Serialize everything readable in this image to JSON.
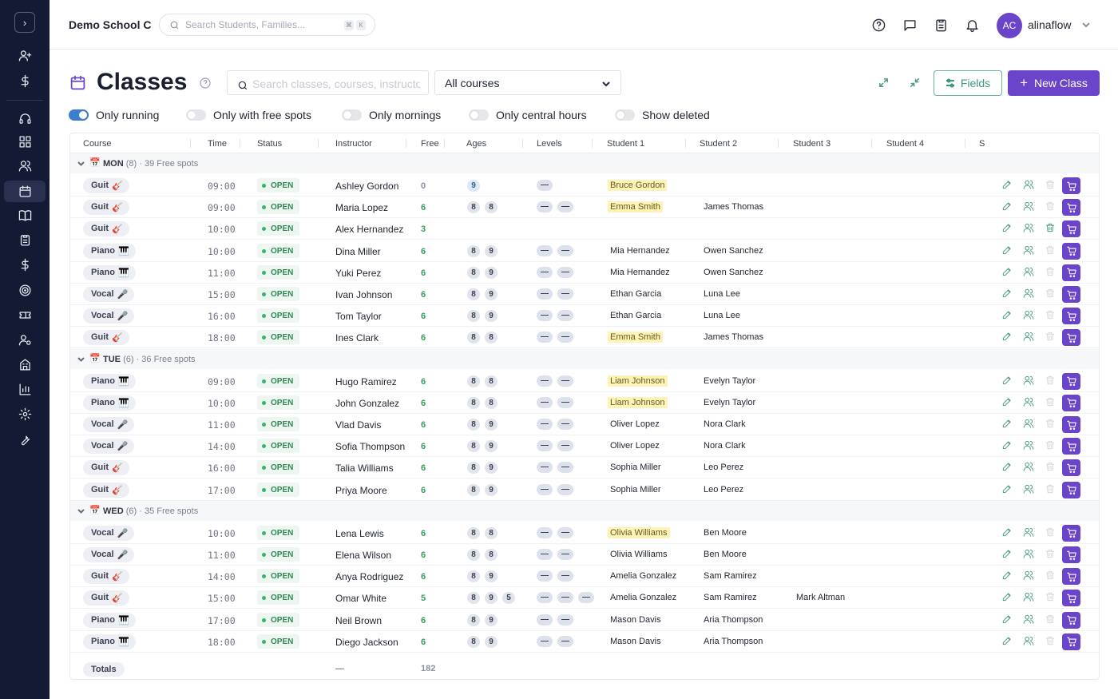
{
  "app": {
    "school_name": "Demo School C",
    "search_placeholder": "Search Students, Families...",
    "kbd_1": "⌘",
    "kbd_2": "K",
    "user": {
      "initials": "AC",
      "name": "alinaflow"
    }
  },
  "sidebar": {
    "toggle": "›",
    "items": [
      {
        "icon": "user-plus-icon"
      },
      {
        "icon": "dollar-icon"
      },
      {
        "icon": "headset-icon"
      },
      {
        "icon": "grid-icon"
      },
      {
        "icon": "users-icon"
      },
      {
        "icon": "calendar-icon",
        "active": true
      },
      {
        "icon": "book-icon"
      },
      {
        "icon": "clipboard-icon"
      },
      {
        "icon": "dollar-icon"
      },
      {
        "icon": "target-icon"
      },
      {
        "icon": "ticket-icon"
      },
      {
        "icon": "user-gear-icon"
      },
      {
        "icon": "building-icon"
      },
      {
        "icon": "chart-icon"
      },
      {
        "icon": "gear-icon"
      },
      {
        "icon": "wrench-icon"
      }
    ]
  },
  "page": {
    "title": "Classes",
    "search_placeholder": "Search classes, courses, instructors...",
    "courses_select": "All courses",
    "fields_label": "Fields",
    "new_class_label": "New Class"
  },
  "filters": [
    {
      "label": "Only running",
      "on": true
    },
    {
      "label": "Only with free spots",
      "on": false
    },
    {
      "label": "Only mornings",
      "on": false
    },
    {
      "label": "Only central hours",
      "on": false
    },
    {
      "label": "Show deleted",
      "on": false
    }
  ],
  "columns": [
    "Course",
    "Time",
    "Status",
    "Instructor",
    "Free",
    "Ages",
    "Levels",
    "Student 1",
    "Student 2",
    "Student 3",
    "Student 4",
    "S"
  ],
  "groups": [
    {
      "day": "MON",
      "meta": "(8) · 39 Free spots",
      "rows": [
        {
          "course": "Guit",
          "emoji": "🎸",
          "time": "09:00",
          "status": "OPEN",
          "instructor": "Ashley Gordon",
          "free": "0",
          "ages": [
            "9"
          ],
          "levels": 1,
          "s1": "Bruce Gordon",
          "s1hl": true,
          "s2": "",
          "s3": ""
        },
        {
          "course": "Guit",
          "emoji": "🎸",
          "time": "09:00",
          "status": "OPEN",
          "instructor": "Maria Lopez",
          "free": "6",
          "ages": [
            "8",
            "8"
          ],
          "levels": 2,
          "s1": "Emma Smith",
          "s1hl": true,
          "s2": "James Thomas",
          "s3": ""
        },
        {
          "course": "Guit",
          "emoji": "🎸",
          "time": "10:00",
          "status": "OPEN",
          "instructor": "Alex Hernandez",
          "free": "3",
          "ages": [],
          "levels": 0,
          "s1": "",
          "s1hl": false,
          "s2": "",
          "s3": "",
          "trash_live": true
        },
        {
          "course": "Piano",
          "emoji": "🎹",
          "time": "10:00",
          "status": "OPEN",
          "instructor": "Dina Miller",
          "free": "6",
          "ages": [
            "8",
            "9"
          ],
          "levels": 2,
          "s1": "Mia Hernandez",
          "s1hl": false,
          "s2": "Owen Sanchez",
          "s3": ""
        },
        {
          "course": "Piano",
          "emoji": "🎹",
          "time": "11:00",
          "status": "OPEN",
          "instructor": "Yuki Perez",
          "free": "6",
          "ages": [
            "8",
            "9"
          ],
          "levels": 2,
          "s1": "Mia Hernandez",
          "s1hl": false,
          "s2": "Owen Sanchez",
          "s3": ""
        },
        {
          "course": "Vocal",
          "emoji": "🎤",
          "time": "15:00",
          "status": "OPEN",
          "instructor": "Ivan Johnson",
          "free": "6",
          "ages": [
            "8",
            "9"
          ],
          "levels": 2,
          "s1": "Ethan Garcia",
          "s1hl": false,
          "s2": "Luna Lee",
          "s3": ""
        },
        {
          "course": "Vocal",
          "emoji": "🎤",
          "time": "16:00",
          "status": "OPEN",
          "instructor": "Tom Taylor",
          "free": "6",
          "ages": [
            "8",
            "9"
          ],
          "levels": 2,
          "s1": "Ethan Garcia",
          "s1hl": false,
          "s2": "Luna Lee",
          "s3": ""
        },
        {
          "course": "Guit",
          "emoji": "🎸",
          "time": "18:00",
          "status": "OPEN",
          "instructor": "Ines Clark",
          "free": "6",
          "ages": [
            "8",
            "8"
          ],
          "levels": 2,
          "s1": "Emma Smith",
          "s1hl": true,
          "s2": "James Thomas",
          "s3": ""
        }
      ]
    },
    {
      "day": "TUE",
      "meta": "(6) · 36 Free spots",
      "rows": [
        {
          "course": "Piano",
          "emoji": "🎹",
          "time": "09:00",
          "status": "OPEN",
          "instructor": "Hugo Ramirez",
          "free": "6",
          "ages": [
            "8",
            "8"
          ],
          "levels": 2,
          "s1": "Liam Johnson",
          "s1hl": true,
          "s2": "Evelyn Taylor",
          "s3": ""
        },
        {
          "course": "Piano",
          "emoji": "🎹",
          "time": "10:00",
          "status": "OPEN",
          "instructor": "John Gonzalez",
          "free": "6",
          "ages": [
            "8",
            "8"
          ],
          "levels": 2,
          "s1": "Liam Johnson",
          "s1hl": true,
          "s2": "Evelyn Taylor",
          "s3": ""
        },
        {
          "course": "Vocal",
          "emoji": "🎤",
          "time": "11:00",
          "status": "OPEN",
          "instructor": "Vlad Davis",
          "free": "6",
          "ages": [
            "8",
            "9"
          ],
          "levels": 2,
          "s1": "Oliver Lopez",
          "s1hl": false,
          "s2": "Nora Clark",
          "s3": ""
        },
        {
          "course": "Vocal",
          "emoji": "🎤",
          "time": "14:00",
          "status": "OPEN",
          "instructor": "Sofia Thompson",
          "free": "6",
          "ages": [
            "8",
            "9"
          ],
          "levels": 2,
          "s1": "Oliver Lopez",
          "s1hl": false,
          "s2": "Nora Clark",
          "s3": ""
        },
        {
          "course": "Guit",
          "emoji": "🎸",
          "time": "16:00",
          "status": "OPEN",
          "instructor": "Talia Williams",
          "free": "6",
          "ages": [
            "8",
            "9"
          ],
          "levels": 2,
          "s1": "Sophia Miller",
          "s1hl": false,
          "s2": "Leo Perez",
          "s3": ""
        },
        {
          "course": "Guit",
          "emoji": "🎸",
          "time": "17:00",
          "status": "OPEN",
          "instructor": "Priya Moore",
          "free": "6",
          "ages": [
            "8",
            "9"
          ],
          "levels": 2,
          "s1": "Sophia Miller",
          "s1hl": false,
          "s2": "Leo Perez",
          "s3": ""
        }
      ]
    },
    {
      "day": "WED",
      "meta": "(6) · 35 Free spots",
      "rows": [
        {
          "course": "Vocal",
          "emoji": "🎤",
          "time": "10:00",
          "status": "OPEN",
          "instructor": "Lena Lewis",
          "free": "6",
          "ages": [
            "8",
            "8"
          ],
          "levels": 2,
          "s1": "Olivia Williams",
          "s1hl": true,
          "s2": "Ben Moore",
          "s3": ""
        },
        {
          "course": "Vocal",
          "emoji": "🎤",
          "time": "11:00",
          "status": "OPEN",
          "instructor": "Elena Wilson",
          "free": "6",
          "ages": [
            "8",
            "8"
          ],
          "levels": 2,
          "s1": "Olivia Williams",
          "s1hl": false,
          "s2": "Ben Moore",
          "s3": ""
        },
        {
          "course": "Guit",
          "emoji": "🎸",
          "time": "14:00",
          "status": "OPEN",
          "instructor": "Anya Rodriguez",
          "free": "6",
          "ages": [
            "8",
            "9"
          ],
          "levels": 2,
          "s1": "Amelia Gonzalez",
          "s1hl": false,
          "s2": "Sam Ramirez",
          "s3": ""
        },
        {
          "course": "Guit",
          "emoji": "🎸",
          "time": "15:00",
          "status": "OPEN",
          "instructor": "Omar White",
          "free": "5",
          "ages": [
            "8",
            "9",
            "5"
          ],
          "levels": 3,
          "s1": "Amelia Gonzalez",
          "s1hl": false,
          "s2": "Sam Ramirez",
          "s3": "Mark Altman"
        },
        {
          "course": "Piano",
          "emoji": "🎹",
          "time": "17:00",
          "status": "OPEN",
          "instructor": "Neil Brown",
          "free": "6",
          "ages": [
            "8",
            "9"
          ],
          "levels": 2,
          "s1": "Mason Davis",
          "s1hl": false,
          "s2": "Aria Thompson",
          "s3": ""
        },
        {
          "course": "Piano",
          "emoji": "🎹",
          "time": "18:00",
          "status": "OPEN",
          "instructor": "Diego Jackson",
          "free": "6",
          "ages": [
            "8",
            "9"
          ],
          "levels": 2,
          "s1": "Mason Davis",
          "s1hl": false,
          "s2": "Aria Thompson",
          "s3": ""
        }
      ]
    }
  ],
  "totals": {
    "label": "Totals",
    "instructor": "—",
    "free": "182"
  },
  "colors": {
    "accent": "#6a44c9",
    "sidebar": "#141a33",
    "teal": "#3f9585",
    "open_green": "#2f8a52"
  }
}
